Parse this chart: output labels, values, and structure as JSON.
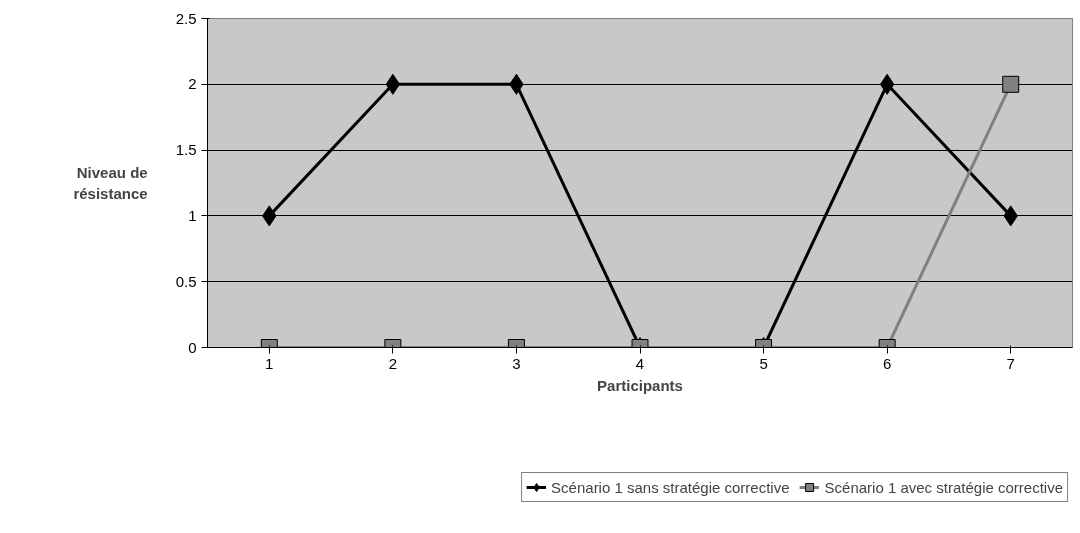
{
  "chart_data": {
    "type": "line",
    "xlabel": "Participants",
    "ylabel": "Niveau de résistance",
    "categories": [
      "1",
      "2",
      "3",
      "4",
      "5",
      "6",
      "7"
    ],
    "series": [
      {
        "name": "Scénario 1 sans stratégie corrective",
        "color": "#000000",
        "marker": "diamond",
        "values": [
          1,
          2,
          2,
          0,
          0,
          2,
          1
        ]
      },
      {
        "name": "Scénario 1 avec stratégie corrective",
        "color": "#808080",
        "marker": "square",
        "values": [
          0,
          0,
          0,
          0,
          0,
          0,
          2
        ]
      }
    ],
    "ylim": [
      0,
      2.5
    ],
    "yticks": [
      0,
      0.5,
      1,
      1.5,
      2,
      2.5
    ],
    "grid": "y",
    "legend": "bottom right",
    "line_style": "solid"
  }
}
